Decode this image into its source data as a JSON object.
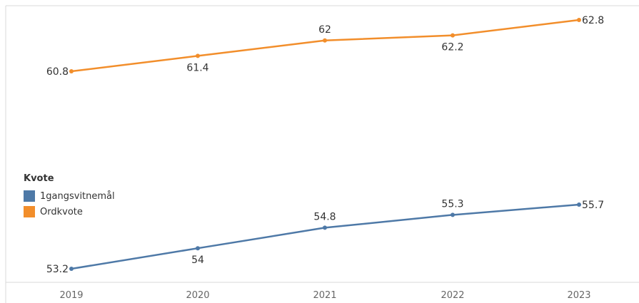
{
  "chart_data": {
    "type": "line",
    "x": [
      "2019",
      "2020",
      "2021",
      "2022",
      "2023"
    ],
    "series": [
      {
        "name": "1gangsvitnemål",
        "color": "#4e79a7",
        "values": [
          53.2,
          54,
          54.8,
          55.3,
          55.7
        ],
        "labels": [
          "53.2",
          "54",
          "54.8",
          "55.3",
          "55.7"
        ]
      },
      {
        "name": "Ordkvote",
        "color": "#f28e2b",
        "values": [
          60.8,
          61.4,
          62,
          62.2,
          62.8
        ],
        "labels": [
          "60.8",
          "61.4",
          "62",
          "62.2",
          "62.8"
        ]
      }
    ],
    "legend": {
      "title": "Kvote",
      "placement": "left"
    },
    "title": "",
    "xlabel": "",
    "ylabel": "",
    "grid": false
  }
}
